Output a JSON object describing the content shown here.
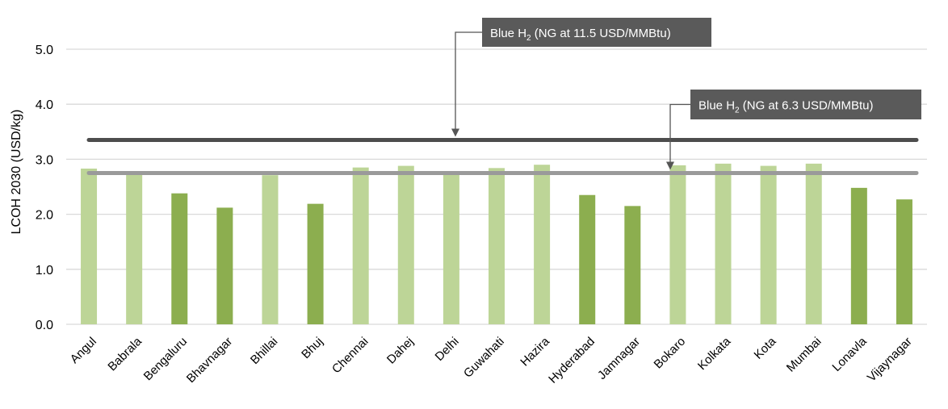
{
  "chart_data": {
    "type": "bar",
    "title": "",
    "xlabel": "",
    "ylabel": "LCOH 2030 (USD/kg)",
    "ylim": [
      0,
      5.5
    ],
    "yticks": [
      "0.0",
      "1.0",
      "2.0",
      "3.0",
      "4.0",
      "5.0"
    ],
    "grid": true,
    "categories": [
      "Angul",
      "Babrala",
      "Bengaluru",
      "Bhavnagar",
      "Bhillai",
      "Bhuj",
      "Chennai",
      "Dahej",
      "Delhi",
      "Guwahati",
      "Hazira",
      "Hyderabad",
      "Jamnagar",
      "Bokaro",
      "Kolkata",
      "Kota",
      "Mumbai",
      "Lonavla",
      "Vijaynagar"
    ],
    "values": [
      2.83,
      2.78,
      2.38,
      2.12,
      2.71,
      2.19,
      2.85,
      2.88,
      2.78,
      2.84,
      2.9,
      2.35,
      2.15,
      2.89,
      2.92,
      2.88,
      2.92,
      2.48,
      2.27
    ],
    "bar_shade": [
      "light",
      "light",
      "dark",
      "dark",
      "light",
      "dark",
      "light",
      "light",
      "light",
      "light",
      "light",
      "dark",
      "dark",
      "light",
      "light",
      "light",
      "light",
      "dark",
      "dark"
    ],
    "colors": {
      "light": "#bdd597",
      "dark": "#8cae4f",
      "line_high": "#4d4d4d",
      "line_low": "#9a9a9a",
      "callout_bg": "#5a5a5a",
      "callout_text": "#ffffff",
      "grid": "#d9d9d9",
      "axis_text": "#000000"
    },
    "reference_lines": [
      {
        "value": 3.35,
        "label_main": "Blue H",
        "label_sub": "2",
        "label_rest": " (NG at 11.5 USD/MMBtu)"
      },
      {
        "value": 2.75,
        "label_main": "Blue H",
        "label_sub": "2",
        "label_rest": " (NG at 6.3 USD/MMBtu)"
      }
    ]
  }
}
